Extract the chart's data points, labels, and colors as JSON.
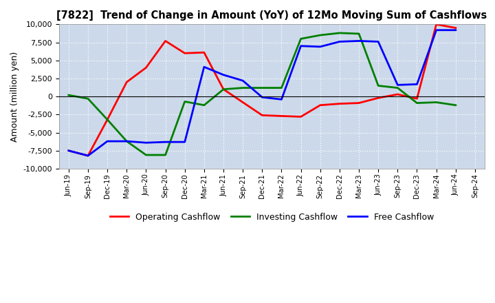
{
  "title": "[7822]  Trend of Change in Amount (YoY) of 12Mo Moving Sum of Cashflows",
  "ylabel": "Amount (million yen)",
  "x_labels": [
    "Jun-19",
    "Sep-19",
    "Dec-19",
    "Mar-20",
    "Jun-20",
    "Sep-20",
    "Dec-20",
    "Mar-21",
    "Jun-21",
    "Sep-21",
    "Dec-21",
    "Mar-22",
    "Jun-22",
    "Sep-22",
    "Dec-22",
    "Mar-23",
    "Jun-23",
    "Sep-23",
    "Dec-23",
    "Mar-24",
    "Jun-24",
    "Sep-24"
  ],
  "operating": [
    -7500,
    -8200,
    -3200,
    2000,
    4000,
    7700,
    6000,
    6100,
    1000,
    -800,
    -2600,
    -2700,
    -2800,
    -1200,
    -1000,
    -900,
    -200,
    300,
    -300,
    10000,
    9500,
    null
  ],
  "investing": [
    200,
    -300,
    -3200,
    -6200,
    -8100,
    -8100,
    -700,
    -1200,
    1000,
    1200,
    1200,
    1200,
    8000,
    8500,
    8800,
    8700,
    1500,
    1200,
    -900,
    -800,
    -1200,
    null
  ],
  "free": [
    -7500,
    -8200,
    -6200,
    -6200,
    -6400,
    -6300,
    -6300,
    4100,
    3000,
    2200,
    -100,
    -400,
    7000,
    6900,
    7600,
    7700,
    7600,
    1600,
    1700,
    9200,
    9200,
    null
  ],
  "operating_color": "#ff0000",
  "investing_color": "#008000",
  "free_color": "#0000ff",
  "ylim_min": -10000,
  "ylim_max": 10000,
  "yticks": [
    -10000,
    -7500,
    -5000,
    -2500,
    0,
    2500,
    5000,
    7500,
    10000
  ],
  "bg_color": "#ccd9ea",
  "grid_color": "#ffffff",
  "line_width": 2.0,
  "legend_labels": [
    "Operating Cashflow",
    "Investing Cashflow",
    "Free Cashflow"
  ]
}
